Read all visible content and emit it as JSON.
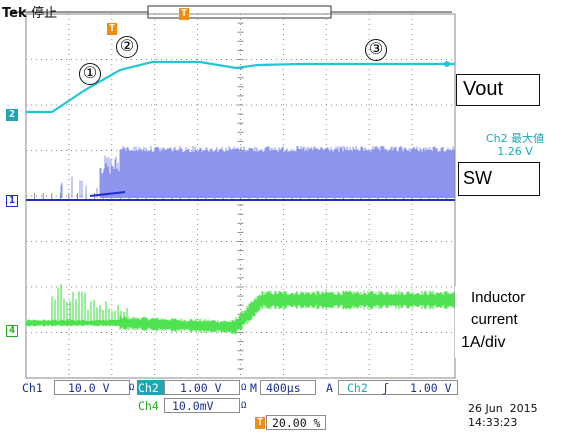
{
  "header": {
    "brand": "Tek",
    "run_state": "停止",
    "trigger_marker": "T"
  },
  "annotations": {
    "markers": [
      "①",
      "②",
      "③"
    ],
    "vout_label": "Vout",
    "sw_label": "SW",
    "inductor_line1": "Inductor",
    "inductor_line2": "current",
    "inductor_scale": "1A/div"
  },
  "measurement": {
    "line1": "Ch2 最大値",
    "line2": "1.26 V"
  },
  "channel_markers": {
    "ch2": "2",
    "ch1": "1",
    "ch4": "4"
  },
  "status": {
    "ch1_label": "Ch1",
    "ch1_scale": "10.0 V",
    "ch2_label": "Ch2",
    "ch2_scale": "1.00 V",
    "ch4_label": "Ch4",
    "ch4_scale": "10.0mV",
    "bw_symbol": "Ω",
    "timebase_label": "M",
    "timebase": "400µs",
    "trigger_mode": "A",
    "trigger_source": "Ch2",
    "trigger_slope": "ʃ",
    "trigger_level": "1.00 V",
    "trigger_position": "20.00 %",
    "date": "26 Jun  2015",
    "time": "14:33:23"
  },
  "colors": {
    "ch1": "#1e2fbf",
    "ch1_noise": "#8c94ee",
    "ch2": "#22c4d8",
    "ch4": "#33dd33",
    "grid": "#8a8a8a",
    "trigger": "#f08c10"
  }
}
